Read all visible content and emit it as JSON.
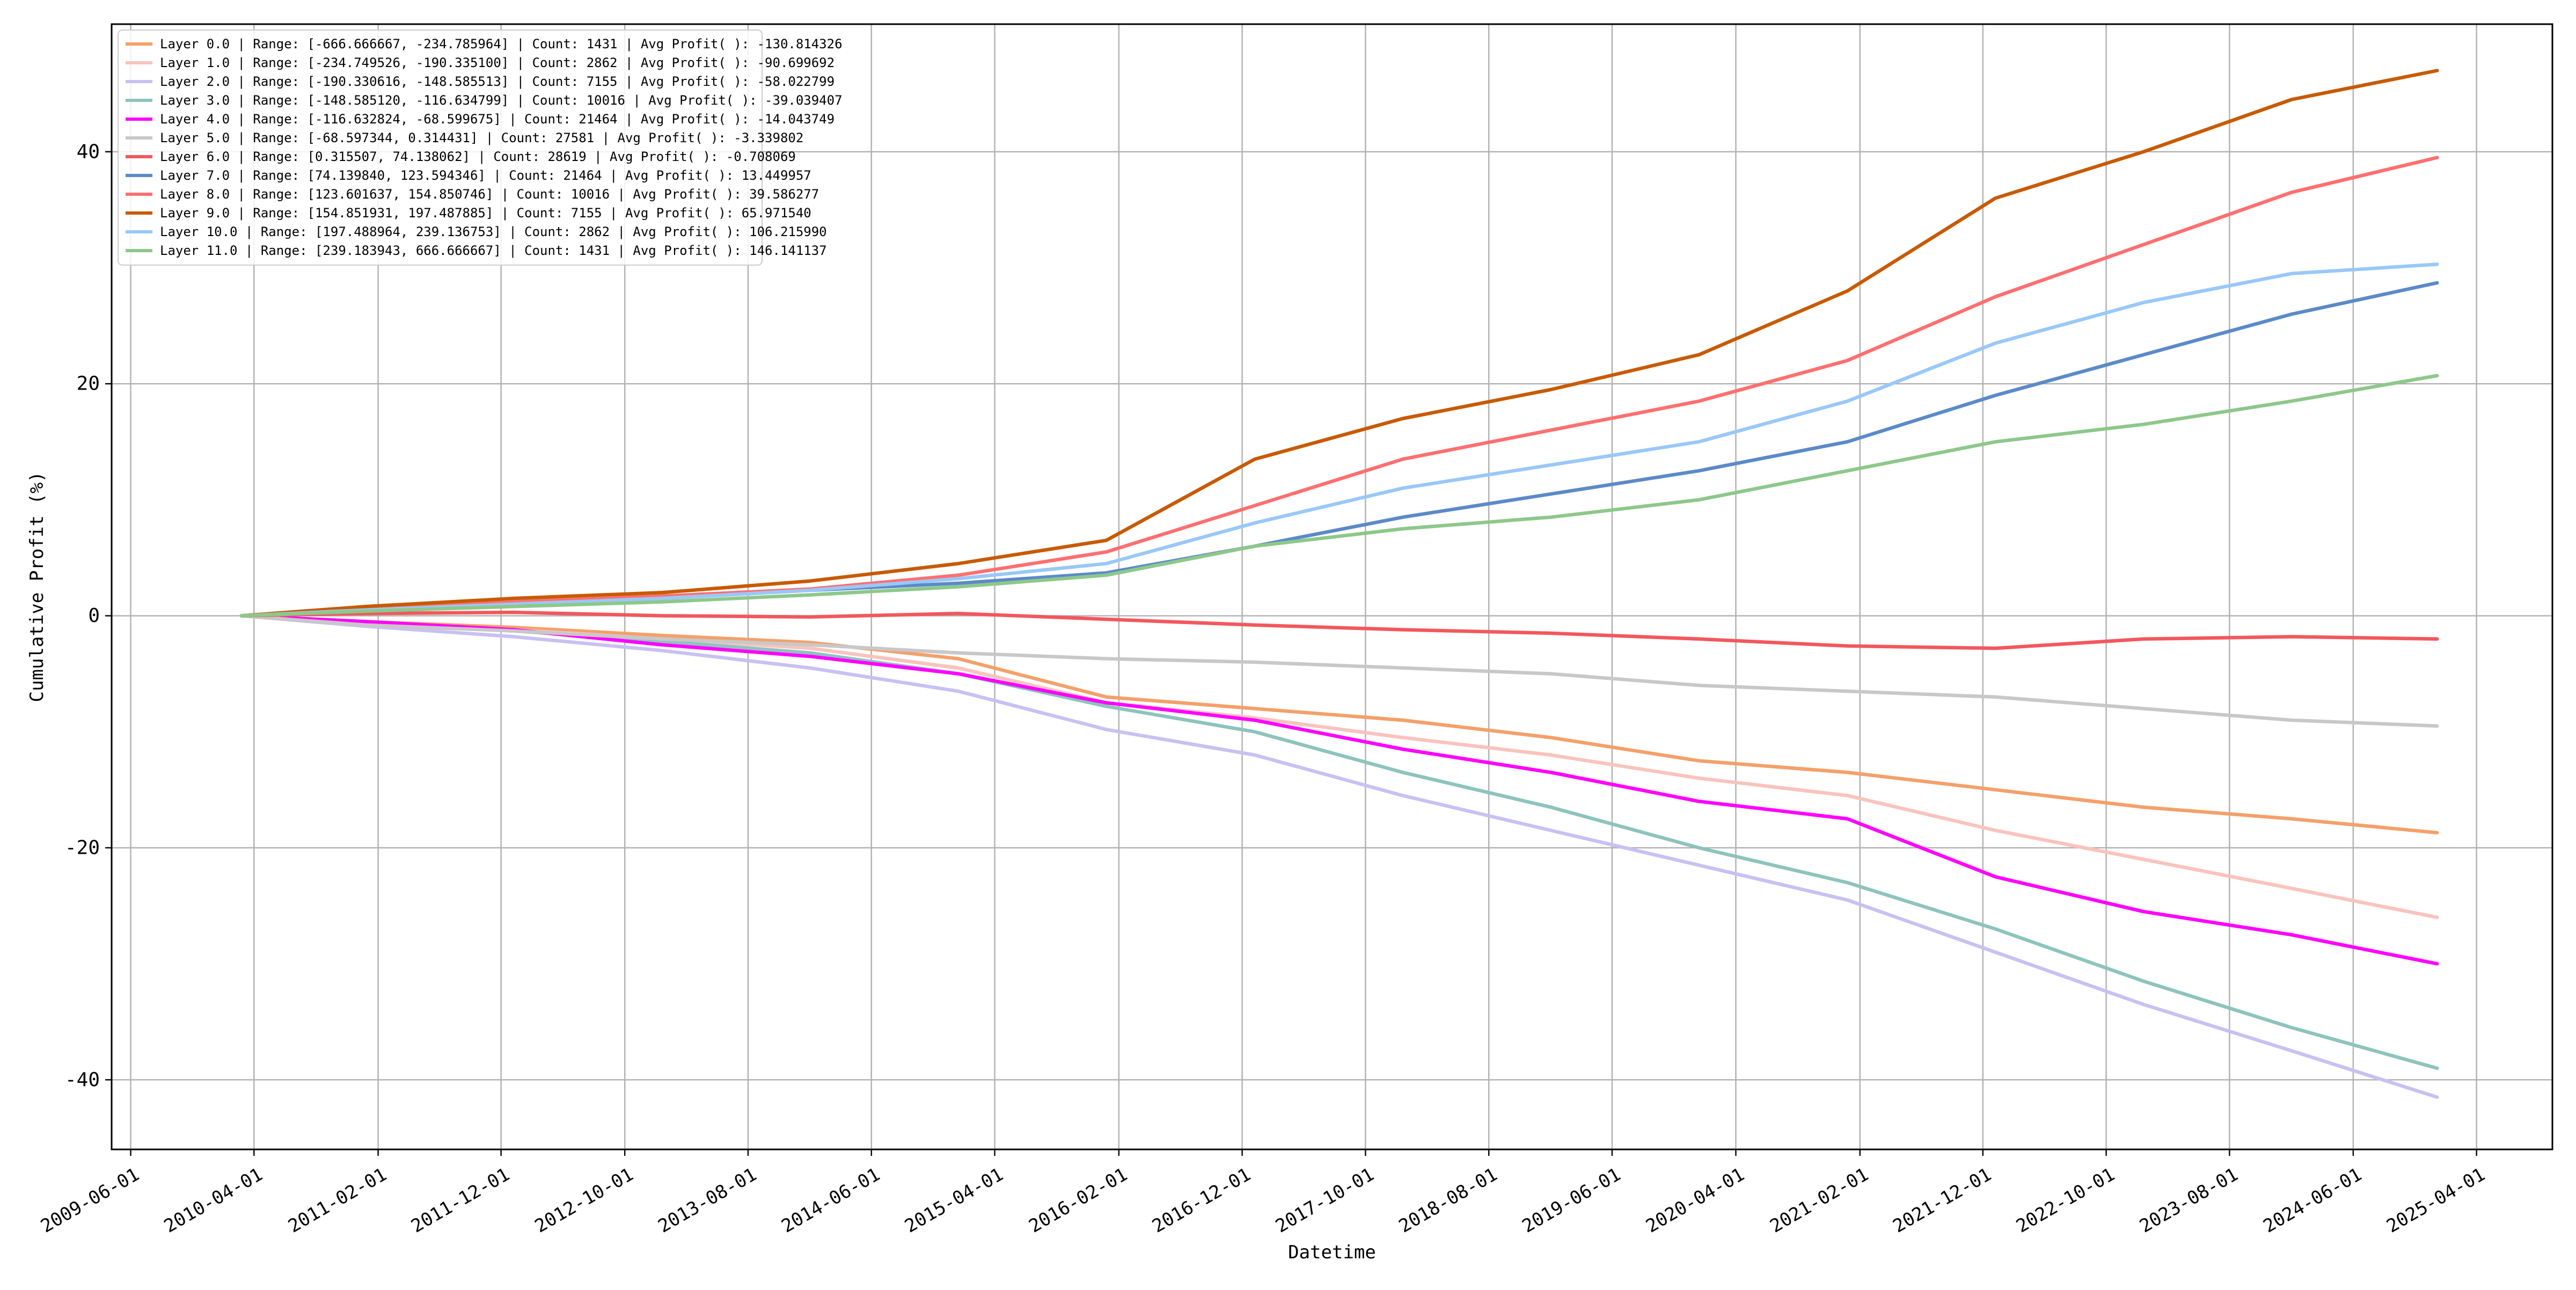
{
  "chart_data": {
    "type": "line",
    "title": "",
    "xlabel": "Datetime",
    "ylabel": "Cumulative Profit (%)",
    "x_ticks": [
      "2009-06-01",
      "2010-04-01",
      "2011-02-01",
      "2011-12-01",
      "2012-10-01",
      "2013-08-01",
      "2014-06-01",
      "2015-04-01",
      "2016-02-01",
      "2016-12-01",
      "2017-10-01",
      "2018-08-01",
      "2019-06-01",
      "2020-04-01",
      "2021-02-01",
      "2021-12-01",
      "2022-10-01",
      "2023-08-01",
      "2024-06-01",
      "2025-04-01"
    ],
    "y_ticks": [
      -40,
      -20,
      0,
      20,
      40
    ],
    "xlim": [
      "2009-04-15",
      "2025-10-05"
    ],
    "ylim": [
      -46,
      51
    ],
    "grid": true,
    "legend_position": "top-left",
    "series": [
      {
        "name": "Layer 0.0 | Range: [-666.666667, -234.785964] | Count: 1431 | Avg Profit( ): -130.814326",
        "color": "#F4A06A",
        "x": [
          "2010-03-01",
          "2011-01-01",
          "2012-01-01",
          "2013-01-01",
          "2014-01-01",
          "2015-01-01",
          "2016-01-01",
          "2017-01-01",
          "2018-01-01",
          "2019-01-01",
          "2020-01-01",
          "2021-01-01",
          "2022-01-01",
          "2023-01-01",
          "2024-01-01",
          "2024-12-25"
        ],
        "y": [
          0,
          -0.5,
          -1.0,
          -1.7,
          -2.3,
          -3.7,
          -7.0,
          -8.0,
          -9.0,
          -10.5,
          -12.5,
          -13.5,
          -15.0,
          -16.5,
          -17.5,
          -18.7
        ]
      },
      {
        "name": "Layer 1.0 | Range: [-234.749526, -190.335100] | Count: 2862 | Avg Profit( ): -90.699692",
        "color": "#F9C3BD",
        "x": [
          "2010-03-01",
          "2011-01-01",
          "2012-01-01",
          "2013-01-01",
          "2014-01-01",
          "2015-01-01",
          "2016-01-01",
          "2017-01-01",
          "2018-01-01",
          "2019-01-01",
          "2020-01-01",
          "2021-01-01",
          "2022-01-01",
          "2023-01-01",
          "2024-01-01",
          "2024-12-25"
        ],
        "y": [
          0,
          -0.6,
          -1.2,
          -2.0,
          -2.8,
          -4.5,
          -7.5,
          -8.8,
          -10.5,
          -12.0,
          -14.0,
          -15.5,
          -18.5,
          -21.0,
          -23.5,
          -26.0
        ]
      },
      {
        "name": "Layer 2.0 | Range: [-190.330616, -148.585513] | Count: 7155 | Avg Profit( ): -58.022799",
        "color": "#C9C0F2",
        "x": [
          "2010-03-01",
          "2011-01-01",
          "2012-01-01",
          "2013-01-01",
          "2014-01-01",
          "2015-01-01",
          "2016-01-01",
          "2017-01-01",
          "2018-01-01",
          "2019-01-01",
          "2020-01-01",
          "2021-01-01",
          "2022-01-01",
          "2023-01-01",
          "2024-01-01",
          "2024-12-25"
        ],
        "y": [
          0,
          -0.9,
          -1.8,
          -3.0,
          -4.5,
          -6.5,
          -9.8,
          -12.0,
          -15.5,
          -18.5,
          -21.5,
          -24.5,
          -29.0,
          -33.5,
          -37.5,
          -41.5
        ]
      },
      {
        "name": "Layer 3.0 | Range: [-148.585120, -116.634799] | Count: 10016 | Avg Profit( ): -39.039407",
        "color": "#8DC4BD",
        "x": [
          "2010-03-01",
          "2011-01-01",
          "2012-01-01",
          "2013-01-01",
          "2014-01-01",
          "2015-01-01",
          "2016-01-01",
          "2017-01-01",
          "2018-01-01",
          "2019-01-01",
          "2020-01-01",
          "2021-01-01",
          "2022-01-01",
          "2023-01-01",
          "2024-01-01",
          "2024-12-25"
        ],
        "y": [
          0,
          -0.6,
          -1.3,
          -2.2,
          -3.2,
          -5.0,
          -7.8,
          -10.0,
          -13.5,
          -16.5,
          -20.0,
          -23.0,
          -27.0,
          -31.5,
          -35.5,
          -39.0
        ]
      },
      {
        "name": "Layer 4.0 | Range: [-116.632824, -68.599675] | Count: 21464 | Avg Profit( ): -14.043749",
        "color": "#FF00FF",
        "x": [
          "2010-03-01",
          "2011-01-01",
          "2012-01-01",
          "2013-01-01",
          "2014-01-01",
          "2015-01-01",
          "2016-01-01",
          "2017-01-01",
          "2018-01-01",
          "2019-01-01",
          "2020-01-01",
          "2021-01-01",
          "2022-01-01",
          "2023-01-01",
          "2024-01-01",
          "2024-12-25"
        ],
        "y": [
          0,
          -0.5,
          -1.2,
          -2.5,
          -3.5,
          -5.0,
          -7.5,
          -9.0,
          -11.5,
          -13.5,
          -16.0,
          -17.5,
          -22.5,
          -25.5,
          -27.5,
          -30.0
        ]
      },
      {
        "name": "Layer 5.0 | Range: [-68.597344, 0.314431] | Count: 27581 | Avg Profit( ): -3.339802",
        "color": "#C8C8C8",
        "x": [
          "2010-03-01",
          "2011-01-01",
          "2012-01-01",
          "2013-01-01",
          "2014-01-01",
          "2015-01-01",
          "2016-01-01",
          "2017-01-01",
          "2018-01-01",
          "2019-01-01",
          "2020-01-01",
          "2021-01-01",
          "2022-01-01",
          "2023-01-01",
          "2024-01-01",
          "2024-12-25"
        ],
        "y": [
          0,
          -0.8,
          -1.3,
          -2.0,
          -2.5,
          -3.2,
          -3.7,
          -4.0,
          -4.5,
          -5.0,
          -6.0,
          -6.5,
          -7.0,
          -8.0,
          -9.0,
          -9.5
        ]
      },
      {
        "name": "Layer 6.0 | Range: [0.315507, 74.138062] | Count: 28619 | Avg Profit( ): -0.708069",
        "color": "#F2585C",
        "x": [
          "2010-03-01",
          "2011-01-01",
          "2012-01-01",
          "2013-01-01",
          "2014-01-01",
          "2015-01-01",
          "2016-01-01",
          "2017-01-01",
          "2018-01-01",
          "2019-01-01",
          "2020-01-01",
          "2021-01-01",
          "2022-01-01",
          "2023-01-01",
          "2024-01-01",
          "2024-12-25"
        ],
        "y": [
          0,
          0.2,
          0.3,
          0.0,
          -0.1,
          0.2,
          -0.3,
          -0.8,
          -1.2,
          -1.5,
          -2.0,
          -2.6,
          -2.8,
          -2.0,
          -1.8,
          -2.0
        ]
      },
      {
        "name": "Layer 7.0 | Range: [74.139840, 123.594346] | Count: 21464 | Avg Profit( ): 13.449957",
        "color": "#5B8AC8",
        "x": [
          "2010-03-01",
          "2011-01-01",
          "2012-01-01",
          "2013-01-01",
          "2014-01-01",
          "2015-01-01",
          "2016-01-01",
          "2017-01-01",
          "2018-01-01",
          "2019-01-01",
          "2020-01-01",
          "2021-01-01",
          "2022-01-01",
          "2023-01-01",
          "2024-01-01",
          "2024-12-25"
        ],
        "y": [
          0,
          0.7,
          1.1,
          1.5,
          2.2,
          2.8,
          3.7,
          6.0,
          8.5,
          10.5,
          12.5,
          15.0,
          19.0,
          22.5,
          26.0,
          28.7
        ]
      },
      {
        "name": "Layer 8.0 | Range: [123.601637, 154.850746] | Count: 10016 | Avg Profit( ): 39.586277",
        "color": "#FF6F70",
        "x": [
          "2010-03-01",
          "2011-01-01",
          "2012-01-01",
          "2013-01-01",
          "2014-01-01",
          "2015-01-01",
          "2016-01-01",
          "2017-01-01",
          "2018-01-01",
          "2019-01-01",
          "2020-01-01",
          "2021-01-01",
          "2022-01-01",
          "2023-01-01",
          "2024-01-01",
          "2024-12-25"
        ],
        "y": [
          0,
          0.6,
          1.2,
          1.7,
          2.3,
          3.5,
          5.5,
          9.5,
          13.5,
          16.0,
          18.5,
          22.0,
          27.5,
          32.0,
          36.5,
          39.5
        ]
      },
      {
        "name": "Layer 9.0 | Range: [154.851931, 197.487885] | Count: 7155 | Avg Profit( ): 65.971540",
        "color": "#C85A00",
        "x": [
          "2010-03-01",
          "2011-01-01",
          "2012-01-01",
          "2013-01-01",
          "2014-01-01",
          "2015-01-01",
          "2016-01-01",
          "2017-01-01",
          "2018-01-01",
          "2019-01-01",
          "2020-01-01",
          "2021-01-01",
          "2022-01-01",
          "2023-01-01",
          "2024-01-01",
          "2024-12-25"
        ],
        "y": [
          0,
          0.8,
          1.5,
          2.0,
          3.0,
          4.5,
          6.5,
          13.5,
          17.0,
          19.5,
          22.5,
          28.0,
          36.0,
          40.0,
          44.5,
          47.0
        ]
      },
      {
        "name": "Layer 10.0 | Range: [197.488964, 239.136753] | Count: 2862 | Avg Profit( ): 106.215990",
        "color": "#99C8F8",
        "x": [
          "2010-03-01",
          "2011-01-01",
          "2012-01-01",
          "2013-01-01",
          "2014-01-01",
          "2015-01-01",
          "2016-01-01",
          "2017-01-01",
          "2018-01-01",
          "2019-01-01",
          "2020-01-01",
          "2021-01-01",
          "2022-01-01",
          "2023-01-01",
          "2024-01-01",
          "2024-12-25"
        ],
        "y": [
          0,
          0.5,
          1.0,
          1.5,
          2.2,
          3.2,
          4.5,
          8.0,
          11.0,
          13.0,
          15.0,
          18.5,
          23.5,
          27.0,
          29.5,
          30.3
        ]
      },
      {
        "name": "Layer 11.0 | Range: [239.183943, 666.666667] | Count: 1431 | Avg Profit( ): 146.141137",
        "color": "#8DC88A",
        "x": [
          "2010-03-01",
          "2011-01-01",
          "2012-01-01",
          "2013-01-01",
          "2014-01-01",
          "2015-01-01",
          "2016-01-01",
          "2017-01-01",
          "2018-01-01",
          "2019-01-01",
          "2020-01-01",
          "2021-01-01",
          "2022-01-01",
          "2023-01-01",
          "2024-01-01",
          "2024-12-25"
        ],
        "y": [
          0,
          0.4,
          0.8,
          1.2,
          1.8,
          2.5,
          3.5,
          6.0,
          7.5,
          8.5,
          10.0,
          12.5,
          15.0,
          16.5,
          18.5,
          20.7
        ]
      }
    ]
  }
}
